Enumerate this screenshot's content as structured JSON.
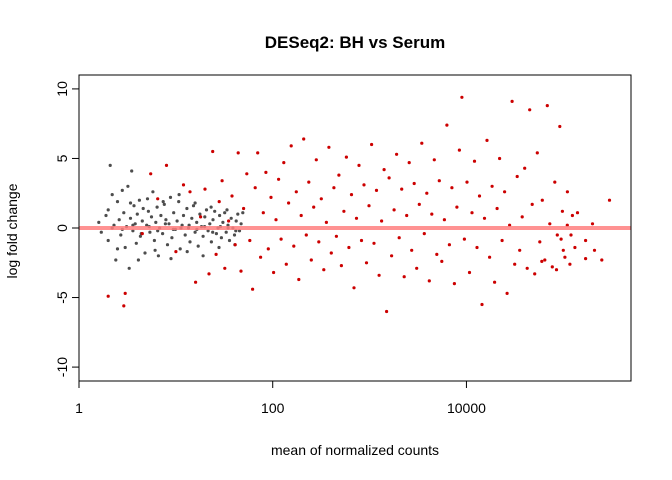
{
  "chart_data": {
    "type": "scatter",
    "title": "DESeq2: BH vs Serum",
    "xlabel": "mean of normalized counts",
    "ylabel": "log fold change",
    "x_scale": "log10",
    "xlim": [
      1,
      500000
    ],
    "ylim": [
      -11,
      11
    ],
    "x_ticks": [
      {
        "value": 1,
        "label": "1"
      },
      {
        "value": 100,
        "label": "100"
      },
      {
        "value": 10000,
        "label": "10000"
      }
    ],
    "y_ticks": [
      {
        "value": -10,
        "label": "-10"
      },
      {
        "value": -5,
        "label": "-5"
      },
      {
        "value": 0,
        "label": "0"
      },
      {
        "value": 5,
        "label": "5"
      },
      {
        "value": 10,
        "label": "10"
      }
    ],
    "reference_line": {
      "y": 0,
      "color": "#ff7f7f"
    },
    "grid": false,
    "colors": {
      "not_significant": "#4d4d4d",
      "significant": "#cc0000"
    },
    "series": [
      {
        "points_note": "",
        "values": [
          [
            1.6,
            0.4
          ],
          [
            1.7,
            -0.3
          ],
          [
            1.9,
            0.9
          ],
          [
            2.0,
            1.3
          ],
          [
            2.0,
            -0.9
          ],
          [
            2.1,
            4.5
          ],
          [
            2.2,
            2.4
          ],
          [
            2.3,
            0.2
          ],
          [
            2.4,
            -2.3
          ],
          [
            2.5,
            1.9
          ],
          [
            2.6,
            0.6
          ],
          [
            2.7,
            -0.5
          ],
          [
            2.8,
            2.7
          ],
          [
            2.9,
            1.1
          ],
          [
            3.0,
            -1.4
          ],
          [
            3.1,
            0.1
          ],
          [
            3.2,
            3.0
          ],
          [
            3.3,
            -2.9
          ],
          [
            3.4,
            0.7
          ],
          [
            3.5,
            4.1
          ],
          [
            3.6,
            -0.2
          ],
          [
            3.7,
            1.6
          ],
          [
            3.8,
            0.3
          ],
          [
            3.9,
            -1.1
          ],
          [
            4.0,
            1.0
          ],
          [
            4.2,
            2.0
          ],
          [
            4.3,
            -0.6
          ],
          [
            4.5,
            0.5
          ],
          [
            4.6,
            1.4
          ],
          [
            4.8,
            -1.8
          ],
          [
            5.0,
            0.2
          ],
          [
            5.2,
            1.2
          ],
          [
            5.4,
            -0.3
          ],
          [
            5.6,
            0.8
          ],
          [
            5.8,
            2.6
          ],
          [
            6.0,
            -0.9
          ],
          [
            6.2,
            0.4
          ],
          [
            6.4,
            1.5
          ],
          [
            6.6,
            -2.0
          ],
          [
            6.8,
            0.0
          ],
          [
            7.0,
            0.9
          ],
          [
            7.3,
            -0.4
          ],
          [
            7.6,
            1.7
          ],
          [
            7.9,
            0.6
          ],
          [
            8.2,
            -1.2
          ],
          [
            8.5,
            0.3
          ],
          [
            8.8,
            2.2
          ],
          [
            9.1,
            -0.7
          ],
          [
            9.5,
            1.1
          ],
          [
            9.9,
            -0.1
          ],
          [
            10.3,
            0.5
          ],
          [
            10.7,
            1.9
          ],
          [
            11.1,
            -1.5
          ],
          [
            11.6,
            0.2
          ],
          [
            12.0,
            0.9
          ],
          [
            12.5,
            -0.5
          ],
          [
            13.0,
            1.4
          ],
          [
            13.5,
            0.0
          ],
          [
            14.0,
            -1.0
          ],
          [
            14.6,
            0.7
          ],
          [
            15.2,
            1.6
          ],
          [
            15.8,
            -0.3
          ],
          [
            16.4,
            0.4
          ],
          [
            17.0,
            -1.3
          ],
          [
            17.7,
            1.0
          ],
          [
            18.4,
            0.1
          ],
          [
            19.1,
            -0.6
          ],
          [
            19.9,
            0.8
          ],
          [
            20.7,
            1.3
          ],
          [
            21.5,
            -0.2
          ],
          [
            22.4,
            0.3
          ],
          [
            23.3,
            -1.0
          ],
          [
            24.2,
            0.6
          ],
          [
            25.2,
            1.2
          ],
          [
            26.2,
            -0.4
          ],
          [
            27.2,
            0.0
          ],
          [
            28.3,
            0.9
          ],
          [
            29.5,
            -0.7
          ],
          [
            30.6,
            0.4
          ],
          [
            31.9,
            1.1
          ],
          [
            33.1,
            -0.3
          ],
          [
            34.5,
            0.2
          ],
          [
            35.8,
            -0.9
          ],
          [
            37.3,
            0.7
          ],
          [
            38.8,
            0.0
          ],
          [
            40.3,
            -0.5
          ],
          [
            42.0,
            0.5
          ],
          [
            43.6,
            1.0
          ],
          [
            45.4,
            -0.2
          ],
          [
            47.2,
            0.3
          ],
          [
            2.2,
            0.0
          ],
          [
            2.8,
            -0.1
          ],
          [
            3.6,
            0.2
          ],
          [
            4.4,
            -0.4
          ],
          [
            5.3,
            0.1
          ],
          [
            6.5,
            -0.2
          ],
          [
            7.8,
            0.3
          ],
          [
            9.4,
            -0.1
          ],
          [
            11.3,
            0.0
          ],
          [
            13.7,
            0.2
          ],
          [
            16.5,
            -0.1
          ],
          [
            19.8,
            0.1
          ],
          [
            24.0,
            -0.3
          ],
          [
            28.8,
            0.1
          ],
          [
            34.6,
            0.0
          ],
          [
            41.6,
            -0.2
          ],
          [
            2.5,
            -1.5
          ],
          [
            3.4,
            1.8
          ],
          [
            4.1,
            -2.3
          ],
          [
            5.1,
            2.1
          ],
          [
            6.1,
            -1.6
          ],
          [
            7.4,
            1.9
          ],
          [
            8.9,
            -2.2
          ],
          [
            10.8,
            2.4
          ],
          [
            13.1,
            -1.7
          ],
          [
            15.8,
            1.8
          ],
          [
            19.1,
            -2.0
          ],
          [
            23.1,
            1.5
          ],
          [
            27.9,
            -1.4
          ],
          [
            33.7,
            1.3
          ],
          [
            40.7,
            -1.2
          ],
          [
            49.1,
            1.1
          ]
        ]
      },
      {
        "values": [
          [
            2.0,
            -4.9
          ],
          [
            3.0,
            -4.7
          ],
          [
            2.9,
            -5.6
          ],
          [
            4.5,
            -0.4
          ],
          [
            5.5,
            3.9
          ],
          [
            6.5,
            2.1
          ],
          [
            8.0,
            4.5
          ],
          [
            10.0,
            -1.7
          ],
          [
            12.0,
            3.1
          ],
          [
            14.0,
            2.6
          ],
          [
            16.0,
            -3.9
          ],
          [
            18.0,
            0.8
          ],
          [
            20.0,
            2.8
          ],
          [
            22.0,
            -3.3
          ],
          [
            24.0,
            5.5
          ],
          [
            26.0,
            -1.9
          ],
          [
            28.0,
            1.9
          ],
          [
            30.0,
            3.4
          ],
          [
            32.0,
            -2.9
          ],
          [
            35.0,
            0.5
          ],
          [
            38.0,
            2.3
          ],
          [
            41.0,
            -1.2
          ],
          [
            44.0,
            5.4
          ],
          [
            47.0,
            -3.1
          ],
          [
            50.0,
            1.4
          ],
          [
            54.0,
            3.9
          ],
          [
            58.0,
            -0.9
          ],
          [
            62.0,
            -4.4
          ],
          [
            66.0,
            2.9
          ],
          [
            70.0,
            5.4
          ],
          [
            75.0,
            -2.1
          ],
          [
            80.0,
            1.1
          ],
          [
            85.0,
            4.0
          ],
          [
            90.0,
            -1.5
          ],
          [
            96.0,
            2.2
          ],
          [
            102.0,
            -3.2
          ],
          [
            108.0,
            0.6
          ],
          [
            115.0,
            3.5
          ],
          [
            122.0,
            -0.8
          ],
          [
            130.0,
            4.7
          ],
          [
            138.0,
            -2.6
          ],
          [
            146.0,
            1.8
          ],
          [
            155.0,
            5.9
          ],
          [
            165.0,
            -1.3
          ],
          [
            175.0,
            2.6
          ],
          [
            186.0,
            -3.7
          ],
          [
            197.0,
            0.9
          ],
          [
            209.0,
            6.4
          ],
          [
            222.0,
            -0.5
          ],
          [
            236.0,
            3.3
          ],
          [
            250.0,
            -2.3
          ],
          [
            265.0,
            1.5
          ],
          [
            282.0,
            4.9
          ],
          [
            299.0,
            -1.0
          ],
          [
            317.0,
            2.1
          ],
          [
            337.0,
            -3.0
          ],
          [
            358.0,
            0.4
          ],
          [
            380.0,
            5.8
          ],
          [
            403.0,
            -1.8
          ],
          [
            428.0,
            2.9
          ],
          [
            454.0,
            -0.6
          ],
          [
            482.0,
            3.8
          ],
          [
            512.0,
            -2.7
          ],
          [
            543.0,
            1.2
          ],
          [
            577.0,
            5.1
          ],
          [
            612.0,
            -1.4
          ],
          [
            650.0,
            2.4
          ],
          [
            690.0,
            -4.3
          ],
          [
            732.0,
            0.7
          ],
          [
            777.0,
            4.5
          ],
          [
            825.0,
            -0.9
          ],
          [
            876.0,
            3.1
          ],
          [
            930.0,
            -2.5
          ],
          [
            987.0,
            1.6
          ],
          [
            1048.0,
            6.0
          ],
          [
            1112.0,
            -1.1
          ],
          [
            1180.0,
            2.7
          ],
          [
            1253.0,
            -3.4
          ],
          [
            1330.0,
            0.5
          ],
          [
            1412.0,
            4.2
          ],
          [
            1499.0,
            -6.0
          ],
          [
            1591.0,
            3.6
          ],
          [
            1689.0,
            -2.0
          ],
          [
            1793.0,
            1.3
          ],
          [
            1903.0,
            5.3
          ],
          [
            2020.0,
            -0.7
          ],
          [
            2144.0,
            2.8
          ],
          [
            2276.0,
            -3.5
          ],
          [
            2416.0,
            0.9
          ],
          [
            2565.0,
            4.7
          ],
          [
            2723.0,
            -1.6
          ],
          [
            2890.0,
            3.2
          ],
          [
            3068.0,
            -2.9
          ],
          [
            3257.0,
            1.7
          ],
          [
            3457.0,
            6.1
          ],
          [
            3670.0,
            -0.4
          ],
          [
            3896.0,
            2.5
          ],
          [
            4135.0,
            -3.8
          ],
          [
            4390.0,
            1.0
          ],
          [
            4660.0,
            4.9
          ],
          [
            4946.0,
            -1.9
          ],
          [
            5251.0,
            3.4
          ],
          [
            5573.0,
            -2.4
          ],
          [
            5916.0,
            0.6
          ],
          [
            6280.0,
            7.4
          ],
          [
            6667.0,
            -1.2
          ],
          [
            7076.0,
            2.9
          ],
          [
            7512.0,
            -4.0
          ],
          [
            7974.0,
            1.5
          ],
          [
            8464.0,
            5.6
          ],
          [
            8985.0,
            9.4
          ],
          [
            9537.0,
            -0.8
          ],
          [
            10124.0,
            3.3
          ],
          [
            10747.0,
            -3.2
          ],
          [
            11408.0,
            1.1
          ],
          [
            12109.0,
            4.8
          ],
          [
            12854.0,
            -1.4
          ],
          [
            13645.0,
            2.3
          ],
          [
            14484.0,
            -5.5
          ],
          [
            15375.0,
            0.7
          ],
          [
            16320.0,
            6.3
          ],
          [
            17324.0,
            -2.1
          ],
          [
            18389.0,
            3.0
          ],
          [
            19520.0,
            -3.9
          ],
          [
            20721.0,
            1.4
          ],
          [
            21995.0,
            5.0
          ],
          [
            23348.0,
            -0.9
          ],
          [
            24783.0,
            2.6
          ],
          [
            26308.0,
            -4.7
          ],
          [
            27925.0,
            0.2
          ],
          [
            29642.0,
            9.1
          ],
          [
            31465.0,
            -2.6
          ],
          [
            33400.0,
            3.7
          ],
          [
            35454.0,
            -1.6
          ],
          [
            37634.0,
            0.8
          ],
          [
            39949.0,
            4.3
          ],
          [
            42405.0,
            -2.9
          ],
          [
            45013.0,
            8.5
          ],
          [
            47780.0,
            1.7
          ],
          [
            50719.0,
            -3.3
          ],
          [
            53838.0,
            5.4
          ],
          [
            57148.0,
            -1.0
          ],
          [
            60663.0,
            2.0
          ],
          [
            64393.0,
            -2.3
          ],
          [
            68353.0,
            8.8
          ],
          [
            72556.0,
            0.3
          ],
          [
            77018.0,
            -2.8
          ],
          [
            81754.0,
            3.3
          ],
          [
            86781.0,
            -0.5
          ],
          [
            92118.0,
            7.3
          ],
          [
            97782.0,
            1.2
          ],
          [
            103795.0,
            -2.1
          ],
          [
            110178.0,
            2.6
          ],
          [
            116953.0,
            -2.6
          ],
          [
            124145.0,
            0.9
          ],
          [
            131779.0,
            -1.4
          ],
          [
            170000.0,
            -2.2
          ],
          [
            210000.0,
            -1.6
          ],
          [
            250000.0,
            -2.3
          ],
          [
            170000.0,
            -0.9
          ],
          [
            140000.0,
            1.1
          ],
          [
            200000.0,
            0.3
          ],
          [
            100000.0,
            -1.6
          ],
          [
            110000.0,
            0.2
          ],
          [
            120000.0,
            -0.5
          ],
          [
            300000.0,
            2.0
          ],
          [
            85000.0,
            -3.0
          ],
          [
            60000.0,
            -2.4
          ],
          [
            95000.0,
            -0.8
          ]
        ]
      }
    ]
  }
}
